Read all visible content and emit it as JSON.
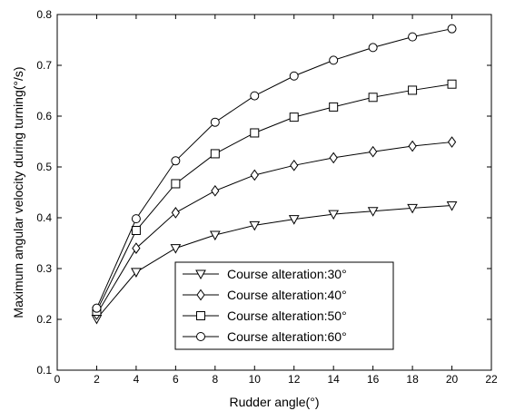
{
  "chart_data": {
    "type": "line",
    "xlabel": "Rudder angle(°)",
    "ylabel": "Maximum angular velocity during turning(°/s)",
    "xlim": [
      0,
      22
    ],
    "ylim": [
      0.1,
      0.8
    ],
    "xticks": [
      0,
      2,
      4,
      6,
      8,
      10,
      12,
      14,
      16,
      18,
      20,
      22
    ],
    "yticks": [
      0.1,
      0.2,
      0.3,
      0.4,
      0.5,
      0.6,
      0.7,
      0.8
    ],
    "xtick_labels": [
      "0",
      "2",
      "4",
      "6",
      "8",
      "10",
      "12",
      "14",
      "16",
      "18",
      "20",
      "22"
    ],
    "ytick_labels": [
      "0.1",
      "0.2",
      "0.3",
      "0.4",
      "0.5",
      "0.6",
      "0.7",
      "0.8"
    ],
    "grid": false,
    "legend_placement": "lower-center",
    "x": [
      2,
      4,
      6,
      8,
      10,
      12,
      14,
      16,
      18,
      20
    ],
    "series": [
      {
        "name": "Course alteration:30°",
        "marker": "triangle-down",
        "values": [
          0.201,
          0.293,
          0.34,
          0.366,
          0.385,
          0.397,
          0.407,
          0.413,
          0.419,
          0.424
        ]
      },
      {
        "name": "Course alteration:40°",
        "marker": "diamond",
        "values": [
          0.21,
          0.34,
          0.41,
          0.453,
          0.484,
          0.503,
          0.518,
          0.53,
          0.541,
          0.549
        ]
      },
      {
        "name": "Course alteration:50°",
        "marker": "square",
        "values": [
          0.216,
          0.375,
          0.467,
          0.526,
          0.567,
          0.598,
          0.618,
          0.637,
          0.651,
          0.663
        ]
      },
      {
        "name": "Course alteration:60°",
        "marker": "circle",
        "values": [
          0.222,
          0.398,
          0.512,
          0.588,
          0.64,
          0.679,
          0.71,
          0.735,
          0.756,
          0.772
        ]
      }
    ],
    "line_color": "#000000"
  }
}
